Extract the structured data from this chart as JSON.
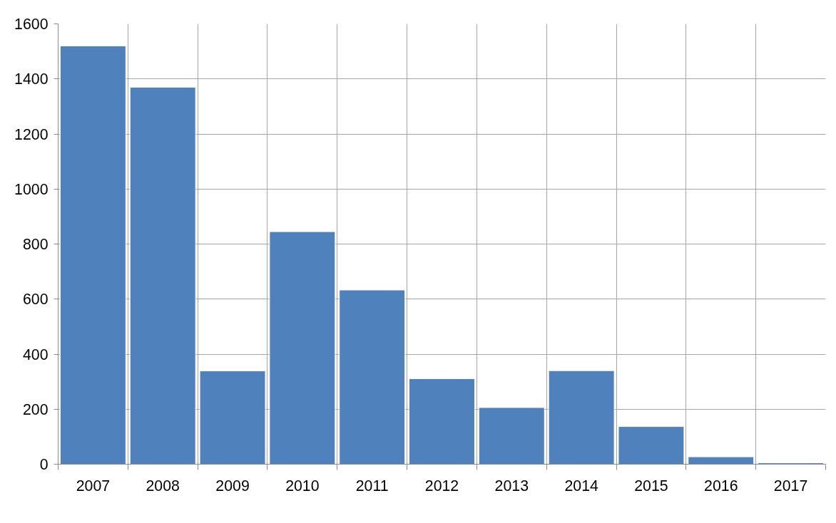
{
  "chart_data": {
    "type": "bar",
    "categories": [
      "2007",
      "2008",
      "2009",
      "2010",
      "2011",
      "2012",
      "2013",
      "2014",
      "2015",
      "2016",
      "2017"
    ],
    "values": [
      1520,
      1370,
      339,
      845,
      633,
      311,
      206,
      340,
      137,
      27,
      5
    ],
    "color": "#4f81bd",
    "ylim": [
      0,
      1600
    ],
    "yticks": [
      0,
      200,
      400,
      600,
      800,
      1000,
      1200,
      1400,
      1600
    ],
    "grid": true
  }
}
